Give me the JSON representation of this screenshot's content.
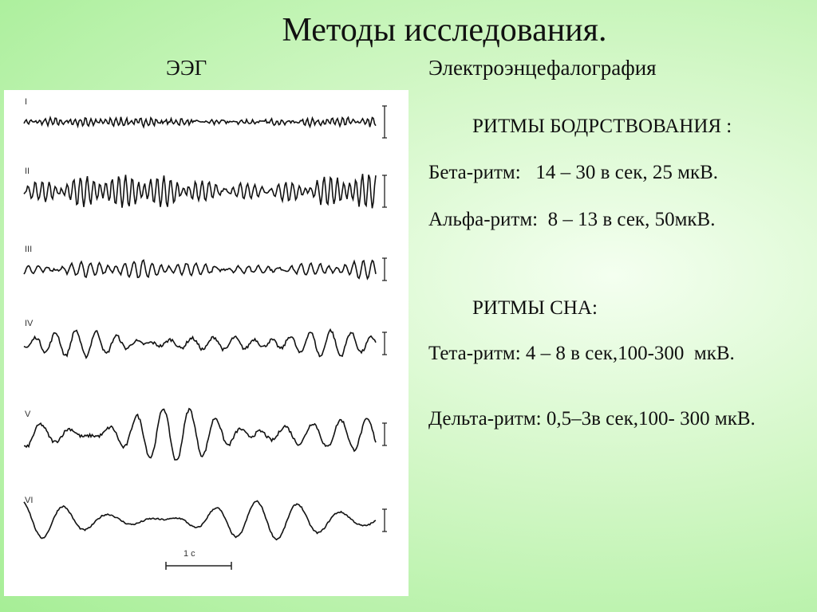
{
  "title": "Методы исследования.",
  "left_heading": "ЭЭГ",
  "right_heading": "Электроэнцефалография",
  "sections": [
    {
      "heading": "РИТМЫ БОДРСТВОВАНИЯ :",
      "items": [
        "Бета-ритм:   14 – 30 в сек, 25 мкВ.",
        "Альфа-ритм:  8 – 13 в сек, 50мкВ."
      ]
    },
    {
      "heading": "РИТМЫ СНА:",
      "items": [
        "Тета-ритм: 4 – 8 в сек,100-300  мкВ.",
        "Дельта-ритм: 0,5–3в сек,100- 300 мкВ."
      ]
    }
  ],
  "figure": {
    "traces": [
      "I",
      "II",
      "III",
      "IV",
      "V",
      "VI"
    ],
    "scale_label": "1 с"
  }
}
